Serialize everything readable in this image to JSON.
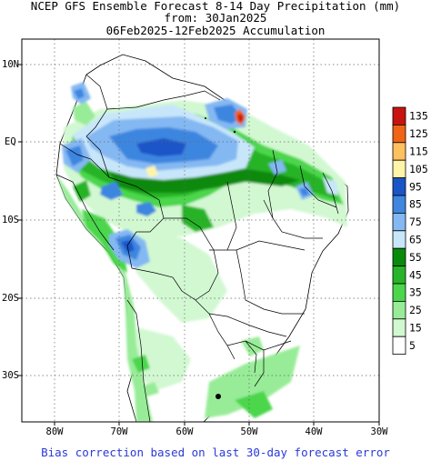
{
  "title_line1": "NCEP GFS Ensemble Forecast 8-14 Day Precipitation (mm)",
  "title_line2": "from: 30Jan2025",
  "title_line3": "06Feb2025-12Feb2025 Accumulation",
  "footer": "Bias correction based on last 30-day forecast error",
  "map": {
    "lon_range": [
      -85,
      -30
    ],
    "lat_range": [
      -36,
      13
    ],
    "lat_ticks": [
      {
        "value": 10,
        "label": "10N"
      },
      {
        "value": 0,
        "label": "EQ"
      },
      {
        "value": -10,
        "label": "10S"
      },
      {
        "value": -20,
        "label": "20S"
      },
      {
        "value": -30,
        "label": "30S"
      }
    ],
    "lon_ticks": [
      {
        "value": -80,
        "label": "80W"
      },
      {
        "value": -70,
        "label": "70W"
      },
      {
        "value": -60,
        "label": "60W"
      },
      {
        "value": -50,
        "label": "50W"
      },
      {
        "value": -40,
        "label": "40W"
      },
      {
        "value": -30,
        "label": "30W"
      }
    ]
  },
  "legend": {
    "levels": [
      {
        "label": "135",
        "color": "#c8140f"
      },
      {
        "label": "125",
        "color": "#f06418"
      },
      {
        "label": "115",
        "color": "#ffc060"
      },
      {
        "label": "105",
        "color": "#fff4a8"
      },
      {
        "label": "95",
        "color": "#1a55c8"
      },
      {
        "label": "85",
        "color": "#3e86e0"
      },
      {
        "label": "75",
        "color": "#84b8f2"
      },
      {
        "label": "65",
        "color": "#c8e6fa"
      },
      {
        "label": "55",
        "color": "#0a8a0a"
      },
      {
        "label": "45",
        "color": "#28b428"
      },
      {
        "label": "35",
        "color": "#4cd64c"
      },
      {
        "label": "25",
        "color": "#98ec98"
      },
      {
        "label": "15",
        "color": "#d2f8d2"
      },
      {
        "label": "5",
        "color": "#ffffff"
      }
    ]
  }
}
